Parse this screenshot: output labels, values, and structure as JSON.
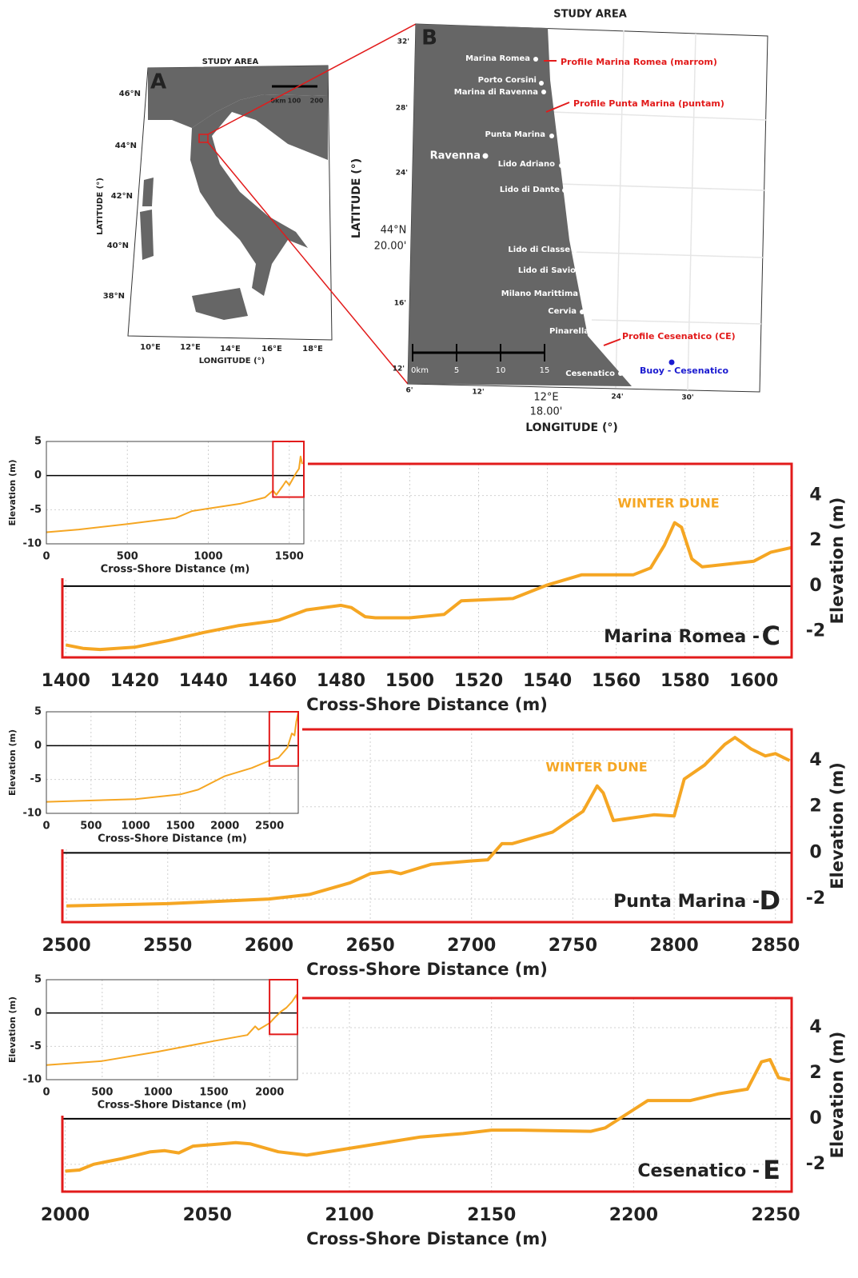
{
  "maps": {
    "a": {
      "title": "STUDY AREA",
      "panel": "A",
      "lat_ticks": [
        "46°N",
        "44°N",
        "42°N",
        "40°N",
        "38°N"
      ],
      "lon_ticks": [
        "10°E",
        "12°E",
        "14°E",
        "16°E",
        "18°E"
      ],
      "ylabel": "LATITUDE (°)",
      "xlabel": "LONGITUDE (°)",
      "scale": [
        "0km",
        "100",
        "200"
      ]
    },
    "b": {
      "title": "STUDY AREA",
      "panel": "B",
      "places": [
        "Marina Romea",
        "Porto Corsini",
        "Marina di Ravenna",
        "Punta Marina",
        "Ravenna",
        "Lido Adriano",
        "Lido di Dante",
        "Lido di Classe",
        "Lido di Savio",
        "Milano Marittima",
        "Cervia",
        "Pinarella",
        "Cesenatico"
      ],
      "profiles": [
        "Profile Marina Romea (marrom)",
        "Profile Punta Marina (puntam)",
        "Profile Cesenatico (CE)"
      ],
      "buoy": "Buoy - Cesenatico",
      "lat_ticks": [
        "32'",
        "28'",
        "24'",
        {
          "deg": "44°N",
          "min": "20.00'"
        },
        "16'",
        "12'"
      ],
      "lon_ticks": [
        "6'",
        "12'",
        {
          "deg": "12°E",
          "min": "18.00'"
        },
        "24'",
        "30'"
      ],
      "ylabel": "LATITUDE (°)",
      "xlabel": "LONGITUDE (°)",
      "scale": [
        "0km",
        "5",
        "10",
        "15"
      ]
    }
  },
  "chart_data": [
    {
      "type": "line",
      "x": [
        1400,
        1405,
        1410,
        1420,
        1430,
        1440,
        1450,
        1460,
        1462,
        1470,
        1480,
        1483,
        1487,
        1490,
        1500,
        1510,
        1515,
        1530,
        1540,
        1550,
        1565,
        1570,
        1574,
        1577,
        1579,
        1582,
        1585,
        1600,
        1605,
        1611
      ],
      "values": [
        -2.6,
        -2.75,
        -2.8,
        -2.7,
        -2.4,
        -2.05,
        -1.75,
        -1.55,
        -1.5,
        -1.05,
        -0.85,
        -0.95,
        -1.35,
        -1.4,
        -1.4,
        -1.25,
        -0.65,
        -0.55,
        0.05,
        0.5,
        0.5,
        0.8,
        1.8,
        2.8,
        2.6,
        1.2,
        0.85,
        1.1,
        1.5,
        1.7
      ],
      "color": "#f5a623",
      "xlim": [
        1399,
        1611
      ],
      "ylim": [
        -3.15,
        5.4
      ],
      "xticks": [
        1400,
        1420,
        1440,
        1460,
        1480,
        1500,
        1520,
        1540,
        1560,
        1580,
        1600
      ],
      "yticks": [
        -2,
        0,
        2,
        4
      ],
      "xlabel": "Cross-Shore Distance (m)",
      "ylabel": "Elevation (m)",
      "grid": true,
      "annotation": "WINTER DUNE",
      "label": "Marina Romea -",
      "panel": "C"
    },
    {
      "type": "line",
      "x": [
        0,
        200,
        500,
        800,
        900,
        1200,
        1350,
        1400,
        1420,
        1460,
        1480,
        1500,
        1540,
        1560,
        1570,
        1580
      ],
      "values": [
        -8.3,
        -7.9,
        -7.1,
        -6.2,
        -5.2,
        -4.1,
        -3.2,
        -2.2,
        -2.8,
        -1.5,
        -0.8,
        -1.4,
        0.3,
        1,
        2.8,
        1.7
      ],
      "color": "#f5a623",
      "xlim": [
        0,
        1590
      ],
      "ylim": [
        -10,
        5
      ],
      "xticks": [
        0,
        500,
        1000,
        1500
      ],
      "yticks": [
        5,
        0,
        -5,
        -10
      ],
      "xlabel": "Cross-Shore Distance (m)",
      "ylabel": "Elevation (m)",
      "grid": true
    },
    {
      "type": "line",
      "x": [
        2500,
        2550,
        2600,
        2620,
        2640,
        2650,
        2660,
        2665,
        2680,
        2700,
        2708,
        2715,
        2720,
        2740,
        2755,
        2762,
        2765,
        2770,
        2790,
        2800,
        2805,
        2815,
        2825,
        2830,
        2838,
        2845,
        2850,
        2857
      ],
      "values": [
        -2.3,
        -2.2,
        -2.0,
        -1.8,
        -1.3,
        -0.9,
        -0.8,
        -0.9,
        -0.5,
        -0.35,
        -0.3,
        0.4,
        0.4,
        0.9,
        1.8,
        2.9,
        2.6,
        1.4,
        1.65,
        1.6,
        3.2,
        3.8,
        4.7,
        5.0,
        4.5,
        4.2,
        4.3,
        4.0
      ],
      "color": "#f5a623",
      "xlim": [
        2498,
        2858
      ],
      "ylim": [
        -3,
        5.35
      ],
      "xticks": [
        2500,
        2550,
        2600,
        2650,
        2700,
        2750,
        2800,
        2850
      ],
      "yticks": [
        -2,
        0,
        2,
        4
      ],
      "xlabel": "Cross-Shore Distance (m)",
      "ylabel": "Elevation (m)",
      "grid": true,
      "annotation": "WINTER DUNE",
      "label": "Punta Marina -",
      "panel": "D"
    },
    {
      "type": "line",
      "x": [
        0,
        1000,
        1500,
        1700,
        2000,
        2300,
        2500,
        2600,
        2700,
        2750,
        2780,
        2800,
        2820
      ],
      "values": [
        -8.3,
        -7.9,
        -7.2,
        -6.5,
        -4.5,
        -3.3,
        -2.2,
        -1.8,
        -0.3,
        1.8,
        1.5,
        3.5,
        4.8
      ],
      "color": "#f5a623",
      "xlim": [
        0,
        2822
      ],
      "ylim": [
        -10,
        5
      ],
      "xticks": [
        0,
        500,
        1000,
        1500,
        2000,
        2500
      ],
      "yticks": [
        5,
        0,
        -5,
        -10
      ],
      "xlabel": "Cross-Shore Distance (m)",
      "ylabel": "Elevation (m)",
      "grid": true
    },
    {
      "type": "line",
      "x": [
        2000,
        2005,
        2010,
        2020,
        2030,
        2035,
        2040,
        2045,
        2055,
        2060,
        2065,
        2075,
        2085,
        2100,
        2115,
        2125,
        2140,
        2150,
        2160,
        2185,
        2190,
        2200,
        2205,
        2210,
        2220,
        2230,
        2240,
        2245,
        2248,
        2251,
        2255
      ],
      "values": [
        -2.3,
        -2.25,
        -2.0,
        -1.75,
        -1.45,
        -1.4,
        -1.5,
        -1.2,
        -1.1,
        -1.05,
        -1.1,
        -1.45,
        -1.6,
        -1.3,
        -1.0,
        -0.8,
        -0.65,
        -0.5,
        -0.5,
        -0.55,
        -0.4,
        0.4,
        0.8,
        0.8,
        0.8,
        1.1,
        1.3,
        2.5,
        2.6,
        1.8,
        1.7
      ],
      "color": "#f5a623",
      "xlim": [
        1999,
        2255.6
      ],
      "ylim": [
        -3.2,
        5.3
      ],
      "xticks": [
        2000,
        2050,
        2100,
        2150,
        2200,
        2250
      ],
      "yticks": [
        -2,
        0,
        2,
        4
      ],
      "xlabel": "Cross-Shore Distance (m)",
      "ylabel": "Elevation (m)",
      "grid": true,
      "label": "Cesenatico -",
      "panel": "E"
    },
    {
      "type": "line",
      "x": [
        0,
        500,
        1000,
        1500,
        1800,
        1870,
        1900,
        2000,
        2050,
        2100,
        2150,
        2200,
        2240,
        2249
      ],
      "values": [
        -7.8,
        -7.2,
        -5.8,
        -4.2,
        -3.3,
        -2.0,
        -2.5,
        -1.5,
        -0.6,
        0.2,
        0.8,
        1.7,
        2.7,
        1.8
      ],
      "color": "#f5a623",
      "xlim": [
        0,
        2249
      ],
      "ylim": [
        -10,
        5
      ],
      "xticks": [
        0,
        500,
        1000,
        1500,
        2000
      ],
      "yticks": [
        5,
        0,
        -5,
        -10
      ],
      "xlabel": "Cross-Shore Distance (m)",
      "ylabel": "Elevation (m)",
      "grid": true
    }
  ]
}
